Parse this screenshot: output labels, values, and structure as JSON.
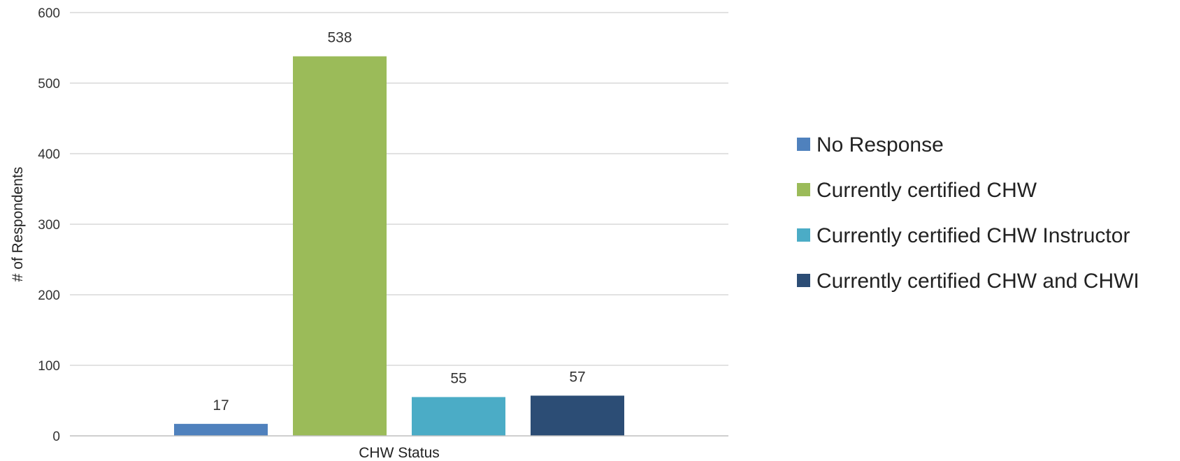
{
  "chart_data": {
    "type": "bar",
    "title": "",
    "categories": [
      "CHW Status"
    ],
    "xlabel": "CHW Status",
    "ylabel": "# of Respondents",
    "ylim": [
      0,
      600
    ],
    "yticks": [
      0,
      100,
      200,
      300,
      400,
      500,
      600
    ],
    "grid": true,
    "legend_position": "right",
    "series": [
      {
        "name": "No Response",
        "values": [
          17
        ],
        "color": "#4f81bd"
      },
      {
        "name": "Currently certified CHW",
        "values": [
          538
        ],
        "color": "#9bbb59"
      },
      {
        "name": "Currently certified CHW Instructor",
        "values": [
          55
        ],
        "color": "#4bacc6"
      },
      {
        "name": "Currently certified CHW and CHWI",
        "values": [
          57
        ],
        "color": "#2c4d75"
      }
    ]
  }
}
